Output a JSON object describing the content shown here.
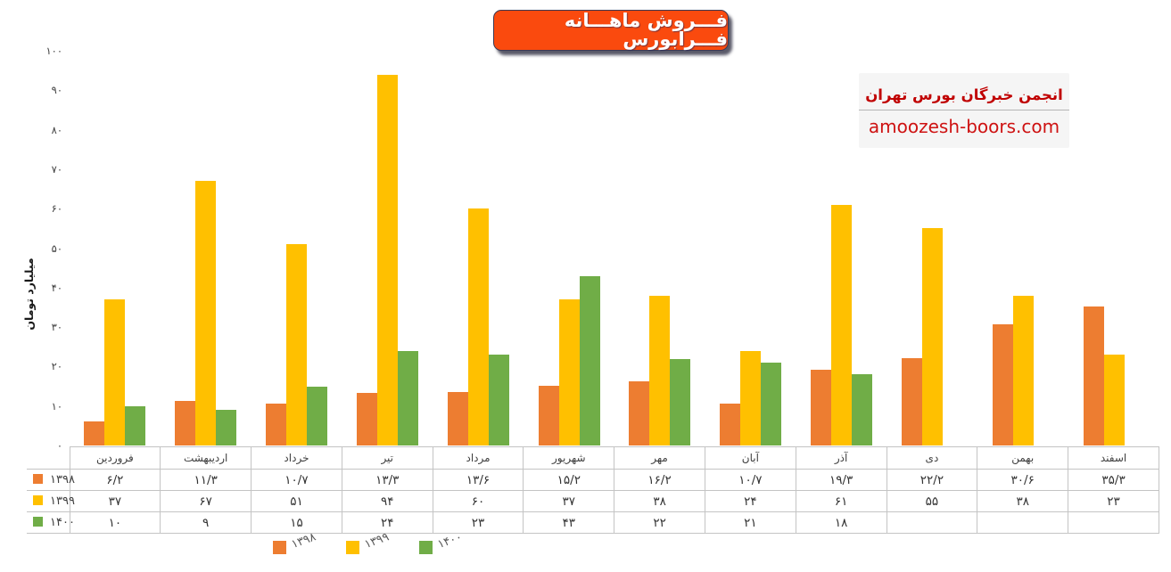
{
  "title": "فـــروش ماهـــانه فـــرابورس",
  "brand": {
    "name": "انجمن خبرگان بورس تهران",
    "url": "amoozesh-boors.com"
  },
  "colors": {
    "series_1398": "#ED7D31",
    "series_1399": "#FFC000",
    "series_1400": "#70AD47",
    "title_background": "#FA4A0E",
    "brand_red": "#C00000",
    "table_border": "#C4C4C4"
  },
  "chart_data": {
    "type": "bar",
    "title": "فروش ماهانه فرابورس",
    "xlabel": "",
    "ylabel": "میلیارد تومان",
    "ylim": [
      0,
      100
    ],
    "grid": false,
    "legend_position": "bottom",
    "yticks": {
      "values": [
        0,
        10,
        20,
        30,
        40,
        50,
        60,
        70,
        80,
        90,
        100
      ],
      "labels": [
        "۰",
        "۱۰",
        "۲۰",
        "۳۰",
        "۴۰",
        "۵۰",
        "۶۰",
        "۷۰",
        "۸۰",
        "۹۰",
        "۱۰۰"
      ]
    },
    "categories": [
      "فروردین",
      "اردیبهشت",
      "خرداد",
      "تیر",
      "مرداد",
      "شهریور",
      "مهر",
      "آبان",
      "آذر",
      "دی",
      "بهمن",
      "اسفند"
    ],
    "series": [
      {
        "name": "۱۳۹۸",
        "key": "1398",
        "color": "#ED7D31",
        "values": [
          6.2,
          11.3,
          10.7,
          13.3,
          13.6,
          15.2,
          16.2,
          10.7,
          19.3,
          22.2,
          30.6,
          35.3
        ],
        "display": [
          "۶/۲",
          "۱۱/۳",
          "۱۰/۷",
          "۱۳/۳",
          "۱۳/۶",
          "۱۵/۲",
          "۱۶/۲",
          "۱۰/۷",
          "۱۹/۳",
          "۲۲/۲",
          "۳۰/۶",
          "۳۵/۳"
        ]
      },
      {
        "name": "۱۳۹۹",
        "key": "1399",
        "color": "#FFC000",
        "values": [
          37,
          67,
          51,
          94,
          60,
          37,
          38,
          24,
          61,
          55,
          38,
          23
        ],
        "display": [
          "۳۷",
          "۶۷",
          "۵۱",
          "۹۴",
          "۶۰",
          "۳۷",
          "۳۸",
          "۲۴",
          "۶۱",
          "۵۵",
          "۳۸",
          "۲۳"
        ]
      },
      {
        "name": "۱۴۰۰",
        "key": "1400",
        "color": "#70AD47",
        "values": [
          10,
          9,
          15,
          24,
          23,
          43,
          22,
          21,
          18,
          null,
          null,
          null
        ],
        "display": [
          "۱۰",
          "۹",
          "۱۵",
          "۲۴",
          "۲۳",
          "۴۳",
          "۲۲",
          "۲۱",
          "۱۸",
          "",
          "",
          ""
        ]
      }
    ]
  }
}
